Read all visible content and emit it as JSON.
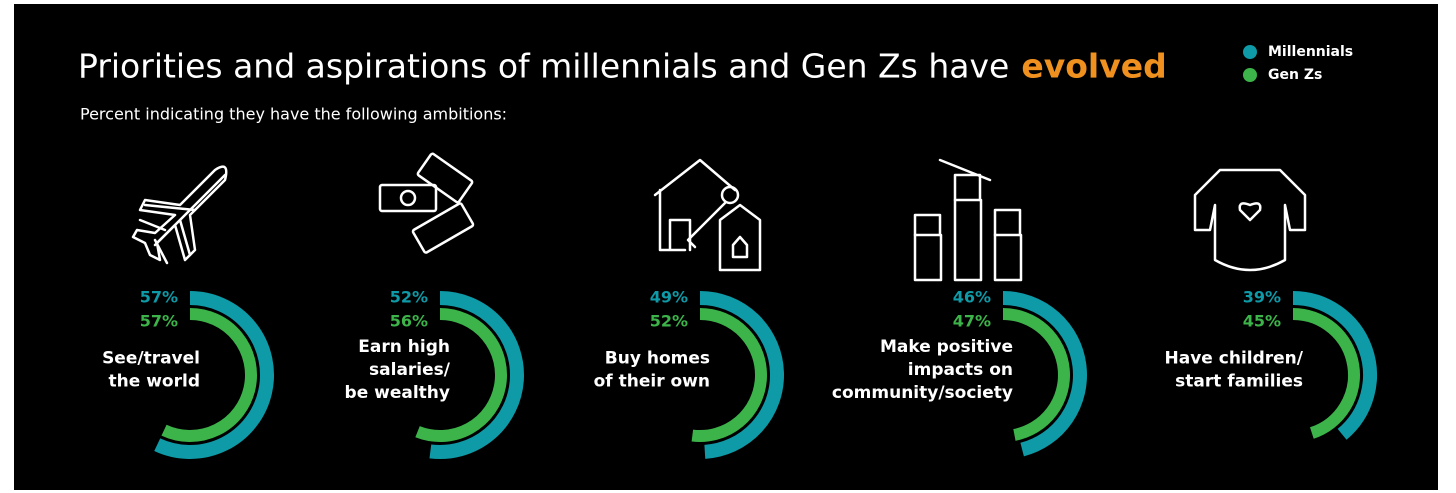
{
  "chart_data": {
    "type": "radial-bar",
    "title": "Priorities and aspirations of millennials and Gen Zs have",
    "title_highlight": "evolved",
    "subtitle": "Percent indicating they have the following ambitions:",
    "categories": [
      "See/travel\nthe world",
      "Earn high\nsalaries/\nbe wealthy",
      "Buy homes\nof their own",
      "Make positive\nimpacts on\ncommunity/society",
      "Have children/\nstart families"
    ],
    "series": [
      {
        "name": "Millennials",
        "color": "#0e9aa7",
        "values": [
          57,
          52,
          49,
          46,
          39
        ],
        "value_labels": [
          "57%",
          "52%",
          "49%",
          "46%",
          "39%"
        ]
      },
      {
        "name": "Gen Zs",
        "color": "#3cb44a",
        "values": [
          57,
          56,
          52,
          47,
          45
        ],
        "value_labels": [
          "57%",
          "56%",
          "52%",
          "47%",
          "45%"
        ]
      }
    ],
    "ylim": [
      0,
      100
    ]
  }
}
